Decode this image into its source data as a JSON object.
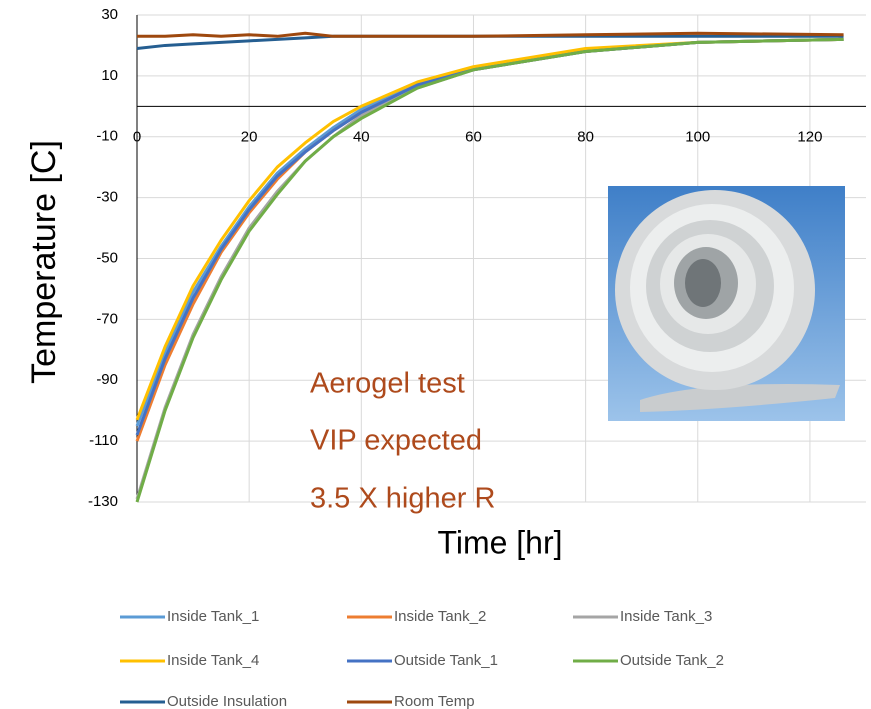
{
  "chart_data": {
    "type": "line",
    "x_label": "Time [hr]",
    "y_label": "Temperature  [C]",
    "annotations": [
      "Aerogel test",
      "VIP expected",
      "3.5 X higher R"
    ],
    "x": [
      0,
      5,
      10,
      15,
      20,
      25,
      30,
      35,
      40,
      50,
      60,
      80,
      100,
      126
    ],
    "series": [
      {
        "name": "Inside Tank_1",
        "color": "#5b9bd5",
        "values": [
          -105,
          -81,
          -61,
          -46,
          -33,
          -22,
          -14,
          -7,
          -1,
          7,
          12.5,
          18,
          21,
          22
        ]
      },
      {
        "name": "Inside Tank_2",
        "color": "#ed7d31",
        "values": [
          -110,
          -85,
          -65,
          -48,
          -35,
          -24,
          -15,
          -8,
          -2,
          7,
          12,
          18,
          21,
          22
        ]
      },
      {
        "name": "Inside Tank_3",
        "color": "#a5a5a5",
        "values": [
          -129,
          -99,
          -75,
          -56,
          -40,
          -28,
          -18,
          -10,
          -3,
          6,
          12,
          18,
          21,
          22
        ]
      },
      {
        "name": "Inside Tank_4",
        "color": "#ffc000",
        "values": [
          -103,
          -79,
          -59,
          -44,
          -31,
          -20,
          -12,
          -5,
          0,
          8,
          13,
          19,
          21,
          22
        ]
      },
      {
        "name": "Outside Tank_1",
        "color": "#4472c4",
        "values": [
          -108,
          -83,
          -63,
          -47,
          -34,
          -23,
          -15,
          -8,
          -2,
          7,
          12,
          18,
          21,
          22
        ]
      },
      {
        "name": "Outside Tank_2",
        "color": "#70ad47",
        "values": [
          -130,
          -100,
          -76,
          -57,
          -41,
          -29,
          -18,
          -10,
          -4,
          6,
          12,
          18,
          21,
          22
        ]
      },
      {
        "name": "Outside Insulation",
        "color": "#255e91",
        "values": [
          19,
          20,
          20.5,
          21,
          21.5,
          22,
          22.5,
          23,
          23,
          23,
          23,
          23,
          23,
          23
        ]
      },
      {
        "name": "Room Temp",
        "color": "#9e480e",
        "values": [
          23,
          23,
          23.5,
          23,
          23.5,
          23,
          24,
          23,
          23,
          23,
          23,
          23.5,
          24,
          23.5
        ]
      }
    ],
    "xlim": [
      0,
      130
    ],
    "xticks": [
      0,
      20,
      40,
      60,
      80,
      100,
      120
    ],
    "ylim": [
      -130,
      30
    ],
    "yticks": [
      -130,
      -110,
      -90,
      -70,
      -50,
      -30,
      -10,
      10,
      30
    ],
    "grid": true,
    "legend": "bottom"
  }
}
